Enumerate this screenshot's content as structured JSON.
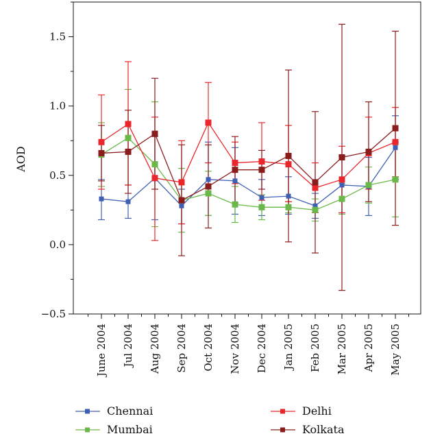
{
  "chart_data": {
    "type": "line",
    "error_bars": true,
    "ylabel": "AOD",
    "xlabel": "",
    "ylim": [
      -0.5,
      1.75
    ],
    "yticks": [
      -0.5,
      0.0,
      0.5,
      1.0,
      1.5
    ],
    "ytick_labels": [
      "−0.5",
      "0.0",
      "0.5",
      "1.0",
      "1.5"
    ],
    "categories": [
      "June 2004",
      "Jul 2004",
      "Aug 2004",
      "Sep 2004",
      "Oct 2004",
      "Nov 2004",
      "Dec 2004",
      "Jan 2005",
      "Feb 2005",
      "Mar 2005",
      "Apr 2005",
      "May 2005"
    ],
    "legend_position": "bottom",
    "series": [
      {
        "name": "Chennai",
        "color": "#3f5fb5",
        "values": [
          0.33,
          0.31,
          0.48,
          0.28,
          0.47,
          0.46,
          0.34,
          0.35,
          0.28,
          0.43,
          0.42,
          0.7
        ],
        "err_low": [
          0.18,
          0.19,
          0.18,
          0.15,
          0.21,
          0.22,
          0.21,
          0.22,
          0.19,
          0.22,
          0.21,
          0.47
        ],
        "err_high": [
          0.47,
          0.43,
          0.78,
          0.4,
          0.74,
          0.7,
          0.47,
          0.49,
          0.37,
          0.64,
          0.63,
          0.93
        ]
      },
      {
        "name": "Mumbai",
        "color": "#6ab84a",
        "values": [
          0.65,
          0.77,
          0.58,
          0.32,
          0.37,
          0.29,
          0.27,
          0.27,
          0.25,
          0.33,
          0.43,
          0.47
        ],
        "err_low": [
          0.42,
          0.43,
          0.13,
          0.09,
          0.21,
          0.16,
          0.18,
          0.23,
          0.17,
          0.22,
          0.3,
          0.2
        ],
        "err_high": [
          0.88,
          1.12,
          1.03,
          0.55,
          0.53,
          0.42,
          0.36,
          0.31,
          0.33,
          0.44,
          0.56,
          0.74
        ]
      },
      {
        "name": "Delhi",
        "color": "#e8262b",
        "values": [
          0.74,
          0.87,
          0.48,
          0.45,
          0.88,
          0.59,
          0.6,
          0.58,
          0.41,
          0.47,
          0.66,
          0.74
        ],
        "err_low": [
          0.4,
          0.43,
          0.03,
          0.15,
          0.59,
          0.44,
          0.32,
          0.31,
          0.23,
          0.23,
          0.4,
          0.49
        ],
        "err_high": [
          1.08,
          1.32,
          0.92,
          0.75,
          1.17,
          0.74,
          0.88,
          0.86,
          0.59,
          0.71,
          0.92,
          0.99
        ]
      },
      {
        "name": "Kolkata",
        "color": "#8b1c1c",
        "values": [
          0.66,
          0.67,
          0.8,
          0.32,
          0.42,
          0.54,
          0.54,
          0.64,
          0.45,
          0.63,
          0.67,
          0.84
        ],
        "err_low": [
          0.46,
          0.37,
          0.4,
          -0.08,
          0.12,
          0.3,
          0.4,
          0.02,
          -0.06,
          -0.33,
          0.31,
          0.14
        ],
        "err_high": [
          0.86,
          0.97,
          1.2,
          0.72,
          0.72,
          0.78,
          0.68,
          1.26,
          0.96,
          1.59,
          1.03,
          1.54
        ]
      }
    ]
  }
}
